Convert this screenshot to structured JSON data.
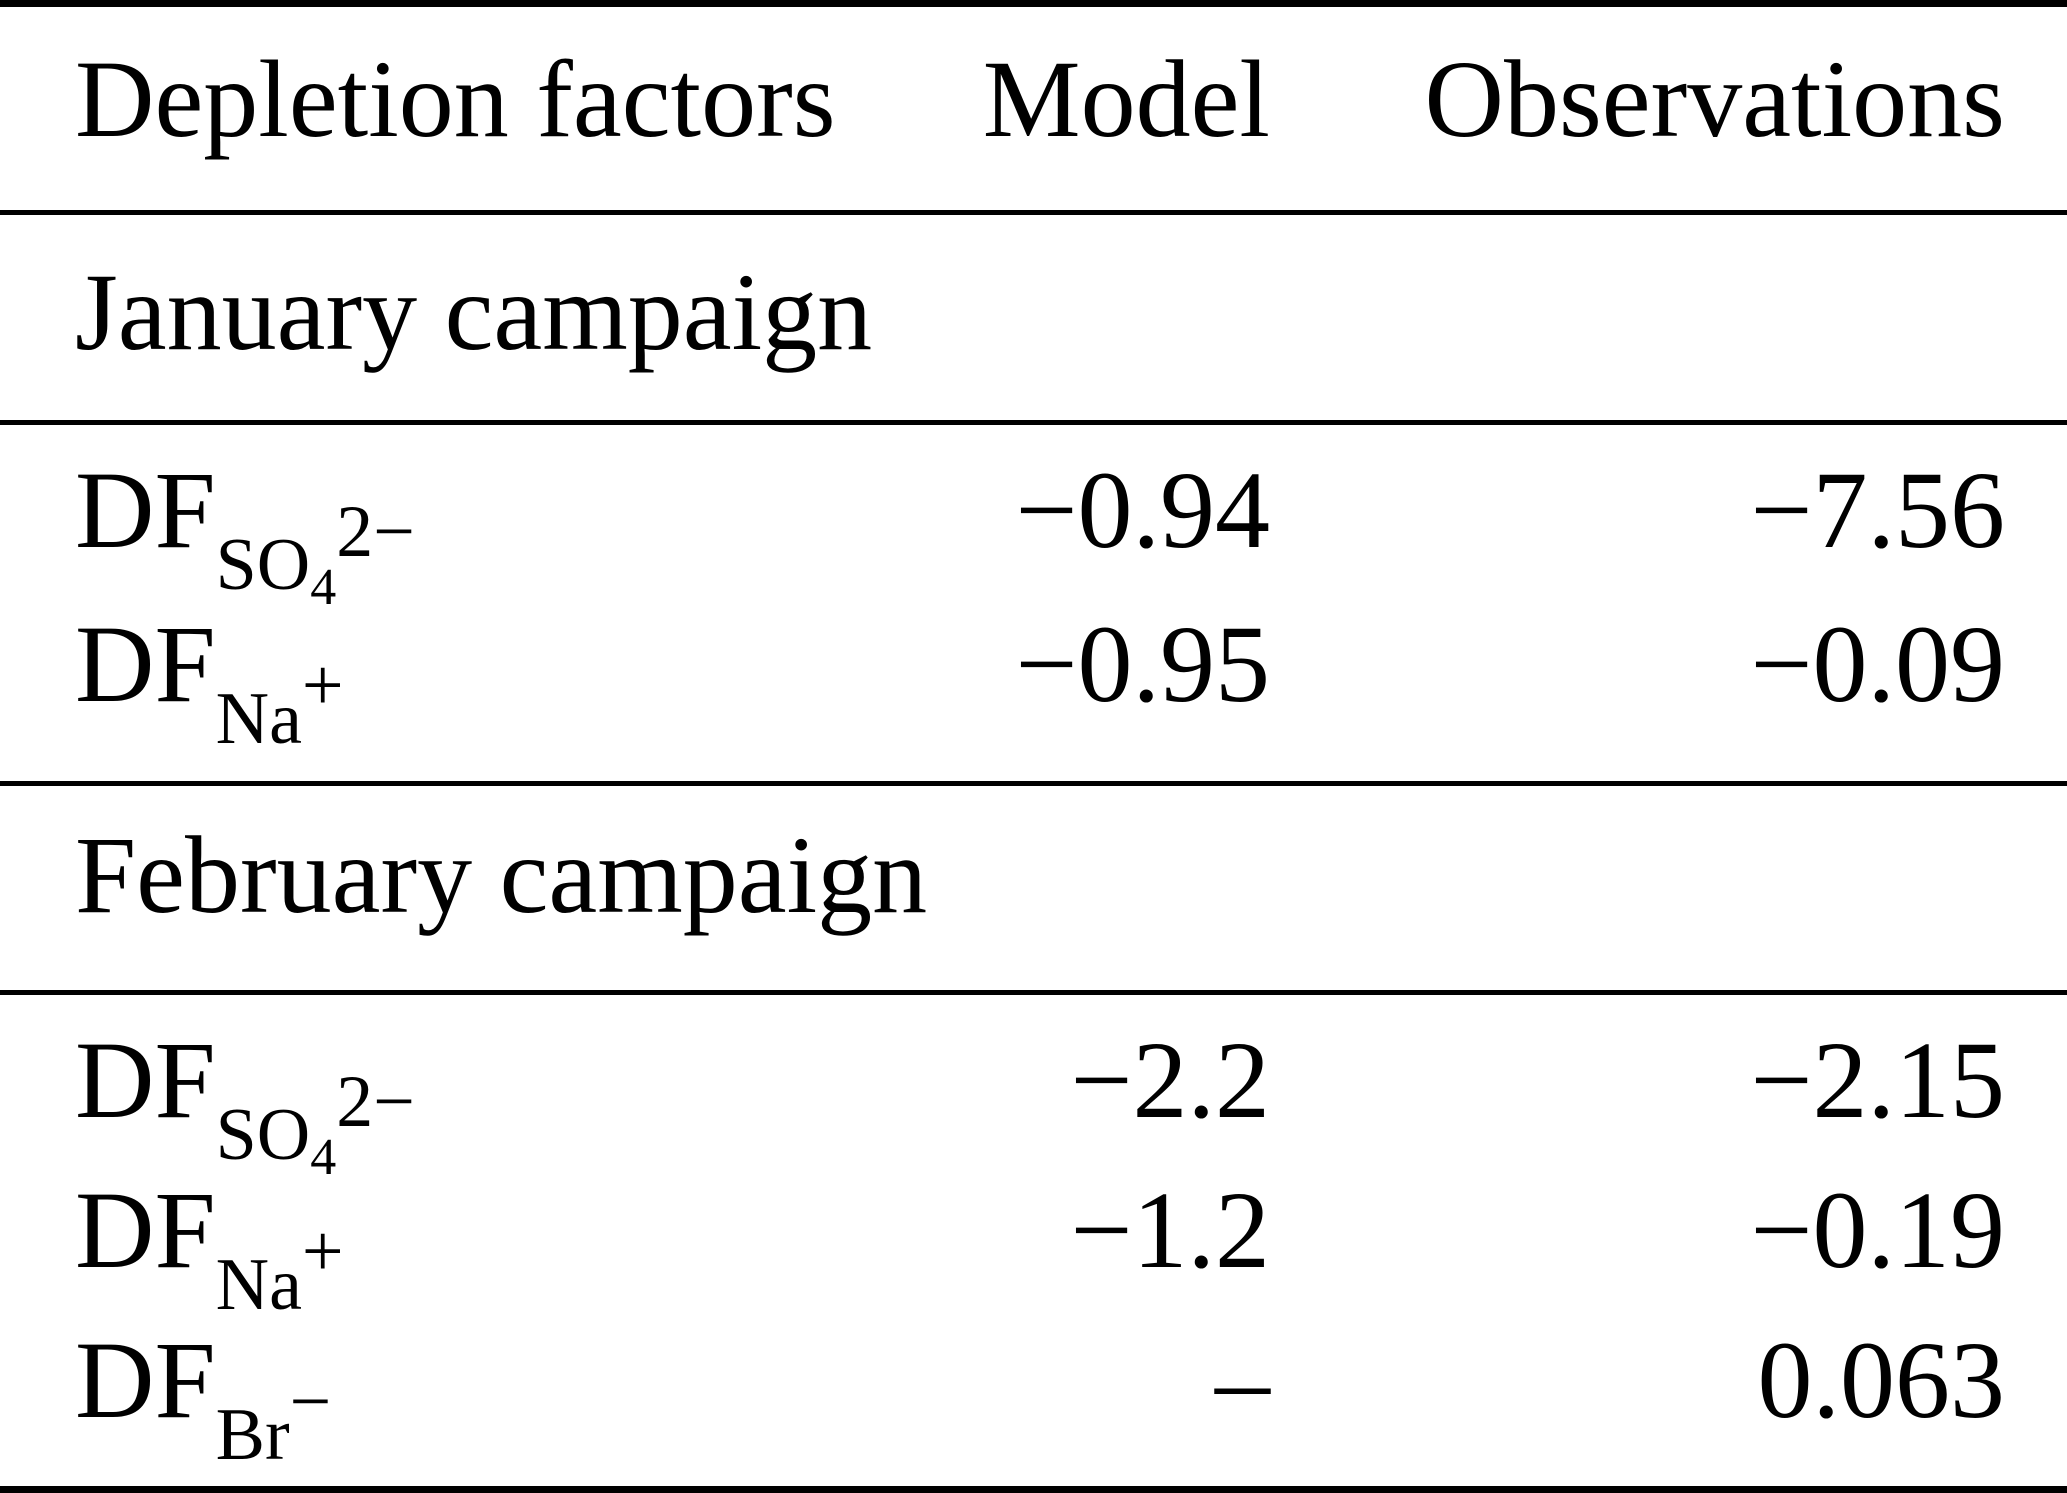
{
  "table": {
    "header": {
      "label": "Depletion factors",
      "model": "Model",
      "observations": "Observations"
    },
    "sections": [
      {
        "title": "January campaign",
        "rows": [
          {
            "label": {
              "base": "DF",
              "sub": "SO",
              "subsub": "4",
              "sup": "2−"
            },
            "model": "−0.94",
            "observations": "−7.56"
          },
          {
            "label": {
              "base": "DF",
              "sub": "Na",
              "sup": "+"
            },
            "model": "−0.95",
            "observations": "−0.09"
          }
        ]
      },
      {
        "title": "February campaign",
        "rows": [
          {
            "label": {
              "base": "DF",
              "sub": "SO",
              "subsub": "4",
              "sup": "2−"
            },
            "model": "−2.2",
            "observations": "−2.15"
          },
          {
            "label": {
              "base": "DF",
              "sub": "Na",
              "sup": "+"
            },
            "model": "−1.2",
            "observations": "−0.19"
          },
          {
            "label": {
              "base": "DF",
              "sub": "Br",
              "sup": "−"
            },
            "model": "–",
            "observations": "0.063"
          }
        ]
      }
    ]
  }
}
